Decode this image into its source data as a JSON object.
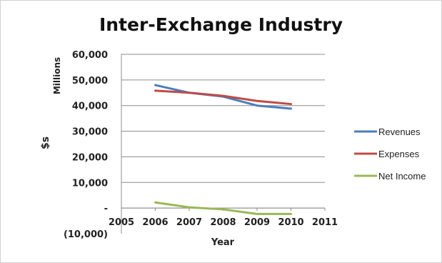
{
  "chart_data": {
    "type": "line",
    "title": "Inter-Exchange Industry",
    "xlabel": "Year",
    "ylabel": "$s",
    "ylabel_unit": "Millions",
    "x": [
      2006,
      2007,
      2008,
      2009,
      2010
    ],
    "xlim": [
      2005,
      2011
    ],
    "x_ticks": [
      "2005",
      "2006",
      "2007",
      "2008",
      "2009",
      "2010",
      "2011"
    ],
    "ylim": [
      -10000,
      60000
    ],
    "y_ticks": [
      {
        "value": 60000,
        "label": "60,000"
      },
      {
        "value": 50000,
        "label": "50,000"
      },
      {
        "value": 40000,
        "label": "40,000"
      },
      {
        "value": 30000,
        "label": "30,000"
      },
      {
        "value": 20000,
        "label": "20,000"
      },
      {
        "value": 10000,
        "label": "10,000"
      },
      {
        "value": 0,
        "label": "-"
      },
      {
        "value": -10000,
        "label": "(10,000)"
      }
    ],
    "grid": true,
    "legend_position": "right",
    "series": [
      {
        "name": "Revenues",
        "color": "#4a7ebb",
        "values": [
          48000,
          45000,
          43500,
          40000,
          38800
        ]
      },
      {
        "name": "Expenses",
        "color": "#be4b48",
        "values": [
          45800,
          45000,
          43800,
          41800,
          40600
        ]
      },
      {
        "name": "Net Income",
        "color": "#98b954",
        "values": [
          2200,
          300,
          -500,
          -2300,
          -2300
        ]
      }
    ]
  }
}
